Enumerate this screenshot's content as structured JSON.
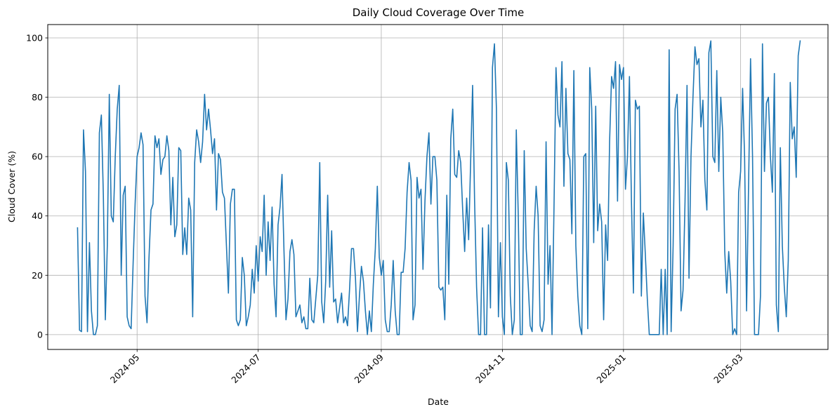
{
  "chart_data": {
    "type": "line",
    "title": "Daily Cloud Coverage Over Time",
    "xlabel": "Date",
    "ylabel": "Cloud Cover (%)",
    "xlim": [
      "2024-03-17",
      "2025-04-14"
    ],
    "ylim": [
      -5,
      104.5
    ],
    "grid": true,
    "line_color": "#1f77b4",
    "x_ticks": [
      "2024-05",
      "2024-07",
      "2024-09",
      "2024-11",
      "2025-01",
      "2025-03"
    ],
    "x_tick_dates": [
      "2024-05-01",
      "2024-07-01",
      "2024-09-01",
      "2024-11-01",
      "2025-01-01",
      "2025-03-01"
    ],
    "y_ticks": [
      0,
      20,
      40,
      60,
      80,
      100
    ],
    "series": [
      {
        "x": [
          "2024-04-01",
          "2024-04-02",
          "2024-04-03",
          "2024-04-04",
          "2024-04-05",
          "2024-04-06",
          "2024-04-07",
          "2024-04-08",
          "2024-04-09",
          "2024-04-10",
          "2024-04-11",
          "2024-04-12",
          "2024-04-13",
          "2024-04-14",
          "2024-04-15",
          "2024-04-16",
          "2024-04-17",
          "2024-04-18",
          "2024-04-19",
          "2024-04-20",
          "2024-04-21",
          "2024-04-22",
          "2024-04-23",
          "2024-04-24",
          "2024-04-25",
          "2024-04-26",
          "2024-04-27",
          "2024-04-28",
          "2024-04-29",
          "2024-04-30",
          "2024-05-01",
          "2024-05-02",
          "2024-05-03",
          "2024-05-04",
          "2024-05-05",
          "2024-05-06",
          "2024-05-07",
          "2024-05-08",
          "2024-05-09",
          "2024-05-10",
          "2024-05-11",
          "2024-05-12",
          "2024-05-13",
          "2024-05-14",
          "2024-05-15",
          "2024-05-16",
          "2024-05-17",
          "2024-05-18",
          "2024-05-19",
          "2024-05-20",
          "2024-05-21",
          "2024-05-22",
          "2024-05-23",
          "2024-05-24",
          "2024-05-25",
          "2024-05-26",
          "2024-05-27",
          "2024-05-28",
          "2024-05-29",
          "2024-05-30",
          "2024-05-31",
          "2024-06-01",
          "2024-06-02",
          "2024-06-03",
          "2024-06-04",
          "2024-06-05",
          "2024-06-06",
          "2024-06-07",
          "2024-06-08",
          "2024-06-09",
          "2024-06-10",
          "2024-06-11",
          "2024-06-12",
          "2024-06-13",
          "2024-06-14",
          "2024-06-15",
          "2024-06-16",
          "2024-06-17",
          "2024-06-18",
          "2024-06-19",
          "2024-06-20",
          "2024-06-21",
          "2024-06-22",
          "2024-06-23",
          "2024-06-24",
          "2024-06-25",
          "2024-06-26",
          "2024-06-27",
          "2024-06-28",
          "2024-06-29",
          "2024-06-30",
          "2024-07-01",
          "2024-07-02",
          "2024-07-03",
          "2024-07-04",
          "2024-07-05",
          "2024-07-06",
          "2024-07-07",
          "2024-07-08",
          "2024-07-09",
          "2024-07-10",
          "2024-07-11",
          "2024-07-12",
          "2024-07-13",
          "2024-07-14",
          "2024-07-15",
          "2024-07-16",
          "2024-07-17",
          "2024-07-18",
          "2024-07-19",
          "2024-07-20",
          "2024-07-21",
          "2024-07-22",
          "2024-07-23",
          "2024-07-24",
          "2024-07-25",
          "2024-07-26",
          "2024-07-27",
          "2024-07-28",
          "2024-07-29",
          "2024-07-30",
          "2024-07-31",
          "2024-08-01",
          "2024-08-02",
          "2024-08-03",
          "2024-08-04",
          "2024-08-05",
          "2024-08-06",
          "2024-08-07",
          "2024-08-08",
          "2024-08-09",
          "2024-08-10",
          "2024-08-11",
          "2024-08-12",
          "2024-08-13",
          "2024-08-14",
          "2024-08-15",
          "2024-08-16",
          "2024-08-17",
          "2024-08-18",
          "2024-08-19",
          "2024-08-20",
          "2024-08-21",
          "2024-08-22",
          "2024-08-23",
          "2024-08-24",
          "2024-08-25",
          "2024-08-26",
          "2024-08-27",
          "2024-08-28",
          "2024-08-29",
          "2024-08-30",
          "2024-08-31",
          "2024-09-01",
          "2024-09-02",
          "2024-09-03",
          "2024-09-04",
          "2024-09-05",
          "2024-09-06",
          "2024-09-07",
          "2024-09-08",
          "2024-09-09",
          "2024-09-10",
          "2024-09-11",
          "2024-09-12",
          "2024-09-13",
          "2024-09-14",
          "2024-09-15",
          "2024-09-16",
          "2024-09-17",
          "2024-09-18",
          "2024-09-19",
          "2024-09-20",
          "2024-09-21",
          "2024-09-22",
          "2024-09-23",
          "2024-09-24",
          "2024-09-25",
          "2024-09-26",
          "2024-09-27",
          "2024-09-28",
          "2024-09-29",
          "2024-09-30",
          "2024-10-01",
          "2024-10-02",
          "2024-10-03",
          "2024-10-04",
          "2024-10-05",
          "2024-10-06",
          "2024-10-07",
          "2024-10-08",
          "2024-10-09",
          "2024-10-10",
          "2024-10-11",
          "2024-10-12",
          "2024-10-13",
          "2024-10-14",
          "2024-10-15",
          "2024-10-16",
          "2024-10-17",
          "2024-10-18",
          "2024-10-19",
          "2024-10-20",
          "2024-10-21",
          "2024-10-22",
          "2024-10-23",
          "2024-10-24",
          "2024-10-25",
          "2024-10-26",
          "2024-10-27",
          "2024-10-28",
          "2024-10-29",
          "2024-10-30",
          "2024-10-31",
          "2024-11-01",
          "2024-11-02",
          "2024-11-03",
          "2024-11-04",
          "2024-11-05",
          "2024-11-06",
          "2024-11-07",
          "2024-11-08",
          "2024-11-09",
          "2024-11-10",
          "2024-11-11",
          "2024-11-12",
          "2024-11-13",
          "2024-11-14",
          "2024-11-15",
          "2024-11-16",
          "2024-11-17",
          "2024-11-18",
          "2024-11-19",
          "2024-11-20",
          "2024-11-21",
          "2024-11-22",
          "2024-11-23",
          "2024-11-24",
          "2024-11-25",
          "2024-11-26",
          "2024-11-27",
          "2024-11-28",
          "2024-11-29",
          "2024-11-30",
          "2024-12-01",
          "2024-12-02",
          "2024-12-03",
          "2024-12-04",
          "2024-12-05",
          "2024-12-06",
          "2024-12-07",
          "2024-12-08",
          "2024-12-09",
          "2024-12-10",
          "2024-12-11",
          "2024-12-12",
          "2024-12-13",
          "2024-12-14",
          "2024-12-15",
          "2024-12-16",
          "2024-12-17",
          "2024-12-18",
          "2024-12-19",
          "2024-12-20",
          "2024-12-21",
          "2024-12-22",
          "2024-12-23",
          "2024-12-24",
          "2024-12-25",
          "2024-12-26",
          "2024-12-27",
          "2024-12-28",
          "2024-12-29",
          "2024-12-30",
          "2024-12-31",
          "2025-01-01",
          "2025-01-02",
          "2025-01-03",
          "2025-01-04",
          "2025-01-05",
          "2025-01-06",
          "2025-01-07",
          "2025-01-08",
          "2025-01-09",
          "2025-01-10",
          "2025-01-11",
          "2025-01-12",
          "2025-01-13",
          "2025-01-14",
          "2025-01-15",
          "2025-01-16",
          "2025-01-17",
          "2025-01-18",
          "2025-01-19",
          "2025-01-20",
          "2025-01-21",
          "2025-01-22",
          "2025-01-23",
          "2025-01-24",
          "2025-01-25",
          "2025-01-26",
          "2025-01-27",
          "2025-01-28",
          "2025-01-29",
          "2025-01-30",
          "2025-01-31",
          "2025-02-01",
          "2025-02-02",
          "2025-02-03",
          "2025-02-04",
          "2025-02-05",
          "2025-02-06",
          "2025-02-07",
          "2025-02-08",
          "2025-02-09",
          "2025-02-10",
          "2025-02-11",
          "2025-02-12",
          "2025-02-13",
          "2025-02-14",
          "2025-02-15",
          "2025-02-16",
          "2025-02-17",
          "2025-02-18",
          "2025-02-19",
          "2025-02-20",
          "2025-02-21",
          "2025-02-22",
          "2025-02-23",
          "2025-02-24",
          "2025-02-25",
          "2025-02-26",
          "2025-02-27",
          "2025-02-28",
          "2025-03-01",
          "2025-03-02",
          "2025-03-03",
          "2025-03-04",
          "2025-03-05",
          "2025-03-06",
          "2025-03-07",
          "2025-03-08",
          "2025-03-09",
          "2025-03-10",
          "2025-03-11",
          "2025-03-12",
          "2025-03-13",
          "2025-03-14",
          "2025-03-15",
          "2025-03-16",
          "2025-03-17",
          "2025-03-18",
          "2025-03-19",
          "2025-03-20",
          "2025-03-21",
          "2025-03-22",
          "2025-03-23",
          "2025-03-24",
          "2025-03-25",
          "2025-03-26",
          "2025-03-27",
          "2025-03-28",
          "2025-03-29",
          "2025-03-30",
          "2025-03-31"
        ],
        "y": [
          36,
          1.5,
          1,
          69,
          55,
          1,
          31,
          8,
          0,
          0,
          3,
          68,
          74,
          47,
          5,
          30,
          81,
          40,
          38,
          60,
          76,
          84,
          20,
          47,
          50,
          6,
          3,
          2,
          24,
          44,
          60,
          63,
          68,
          64,
          13,
          4,
          26,
          42,
          44,
          67,
          63,
          66,
          54,
          59,
          60,
          67,
          62,
          37,
          53,
          33,
          37,
          63,
          62,
          27,
          36,
          27,
          46,
          42,
          6,
          58,
          69,
          65,
          58,
          65,
          81,
          69,
          76,
          69,
          61,
          66,
          42,
          61,
          59,
          48,
          46,
          30,
          14,
          44,
          49,
          49,
          5,
          3,
          5,
          26,
          20,
          3,
          6,
          10,
          22,
          14,
          30,
          18,
          33,
          28,
          47,
          20,
          38,
          25,
          43,
          17,
          6,
          37,
          43,
          54,
          28,
          5,
          12,
          28,
          32,
          27,
          6,
          8,
          10,
          4,
          6,
          2,
          2,
          19,
          5,
          4,
          12,
          20,
          58,
          11,
          4,
          18,
          47,
          16,
          35,
          11,
          12,
          4,
          9,
          14,
          4,
          6,
          3,
          15,
          29,
          29,
          19,
          1,
          13,
          23,
          18,
          8,
          0,
          8,
          1,
          17,
          29,
          50,
          26,
          20,
          25,
          5,
          1,
          1,
          10,
          25,
          8,
          0,
          0,
          21,
          21,
          29,
          48,
          58,
          52,
          5,
          10,
          53,
          46,
          49,
          22,
          45,
          60,
          68,
          44,
          60,
          60,
          52,
          16,
          15,
          16,
          5,
          47,
          17,
          66,
          76,
          54,
          53,
          62,
          58,
          42,
          28,
          46,
          32,
          58,
          84,
          45,
          16,
          0,
          0,
          36,
          0,
          0,
          37,
          9,
          90,
          98,
          76,
          6,
          31,
          6,
          0,
          58,
          52,
          13,
          0,
          5,
          69,
          40,
          0,
          0,
          62,
          29,
          17,
          3,
          1,
          35,
          50,
          40,
          3,
          1,
          5,
          65,
          17,
          30,
          0,
          43,
          90,
          74,
          70,
          92,
          50,
          83,
          61,
          59,
          34,
          89,
          30,
          13,
          3,
          0,
          60,
          61,
          2,
          90,
          76,
          31,
          77,
          35,
          44,
          38,
          5,
          37,
          25,
          65,
          87,
          83,
          92,
          45,
          91,
          86,
          90,
          49,
          60,
          87,
          45,
          14,
          79,
          76,
          77,
          13,
          41,
          27,
          12,
          0,
          0,
          0,
          0,
          0,
          0,
          22,
          0,
          22,
          0,
          96,
          1,
          30,
          76,
          81,
          55,
          8,
          15,
          45,
          84,
          19,
          60,
          80,
          97,
          91,
          93,
          70,
          79,
          52,
          42,
          95,
          99,
          60,
          58,
          89,
          55,
          80,
          68,
          28,
          14,
          28,
          18,
          0,
          2,
          0,
          48,
          55,
          83,
          60,
          8,
          50,
          93,
          60,
          0,
          0,
          0,
          13,
          98,
          55,
          78,
          80,
          60,
          48,
          88,
          10,
          1,
          63,
          30,
          16,
          6,
          25,
          85,
          66,
          70,
          53,
          94,
          99
        ]
      }
    ]
  }
}
